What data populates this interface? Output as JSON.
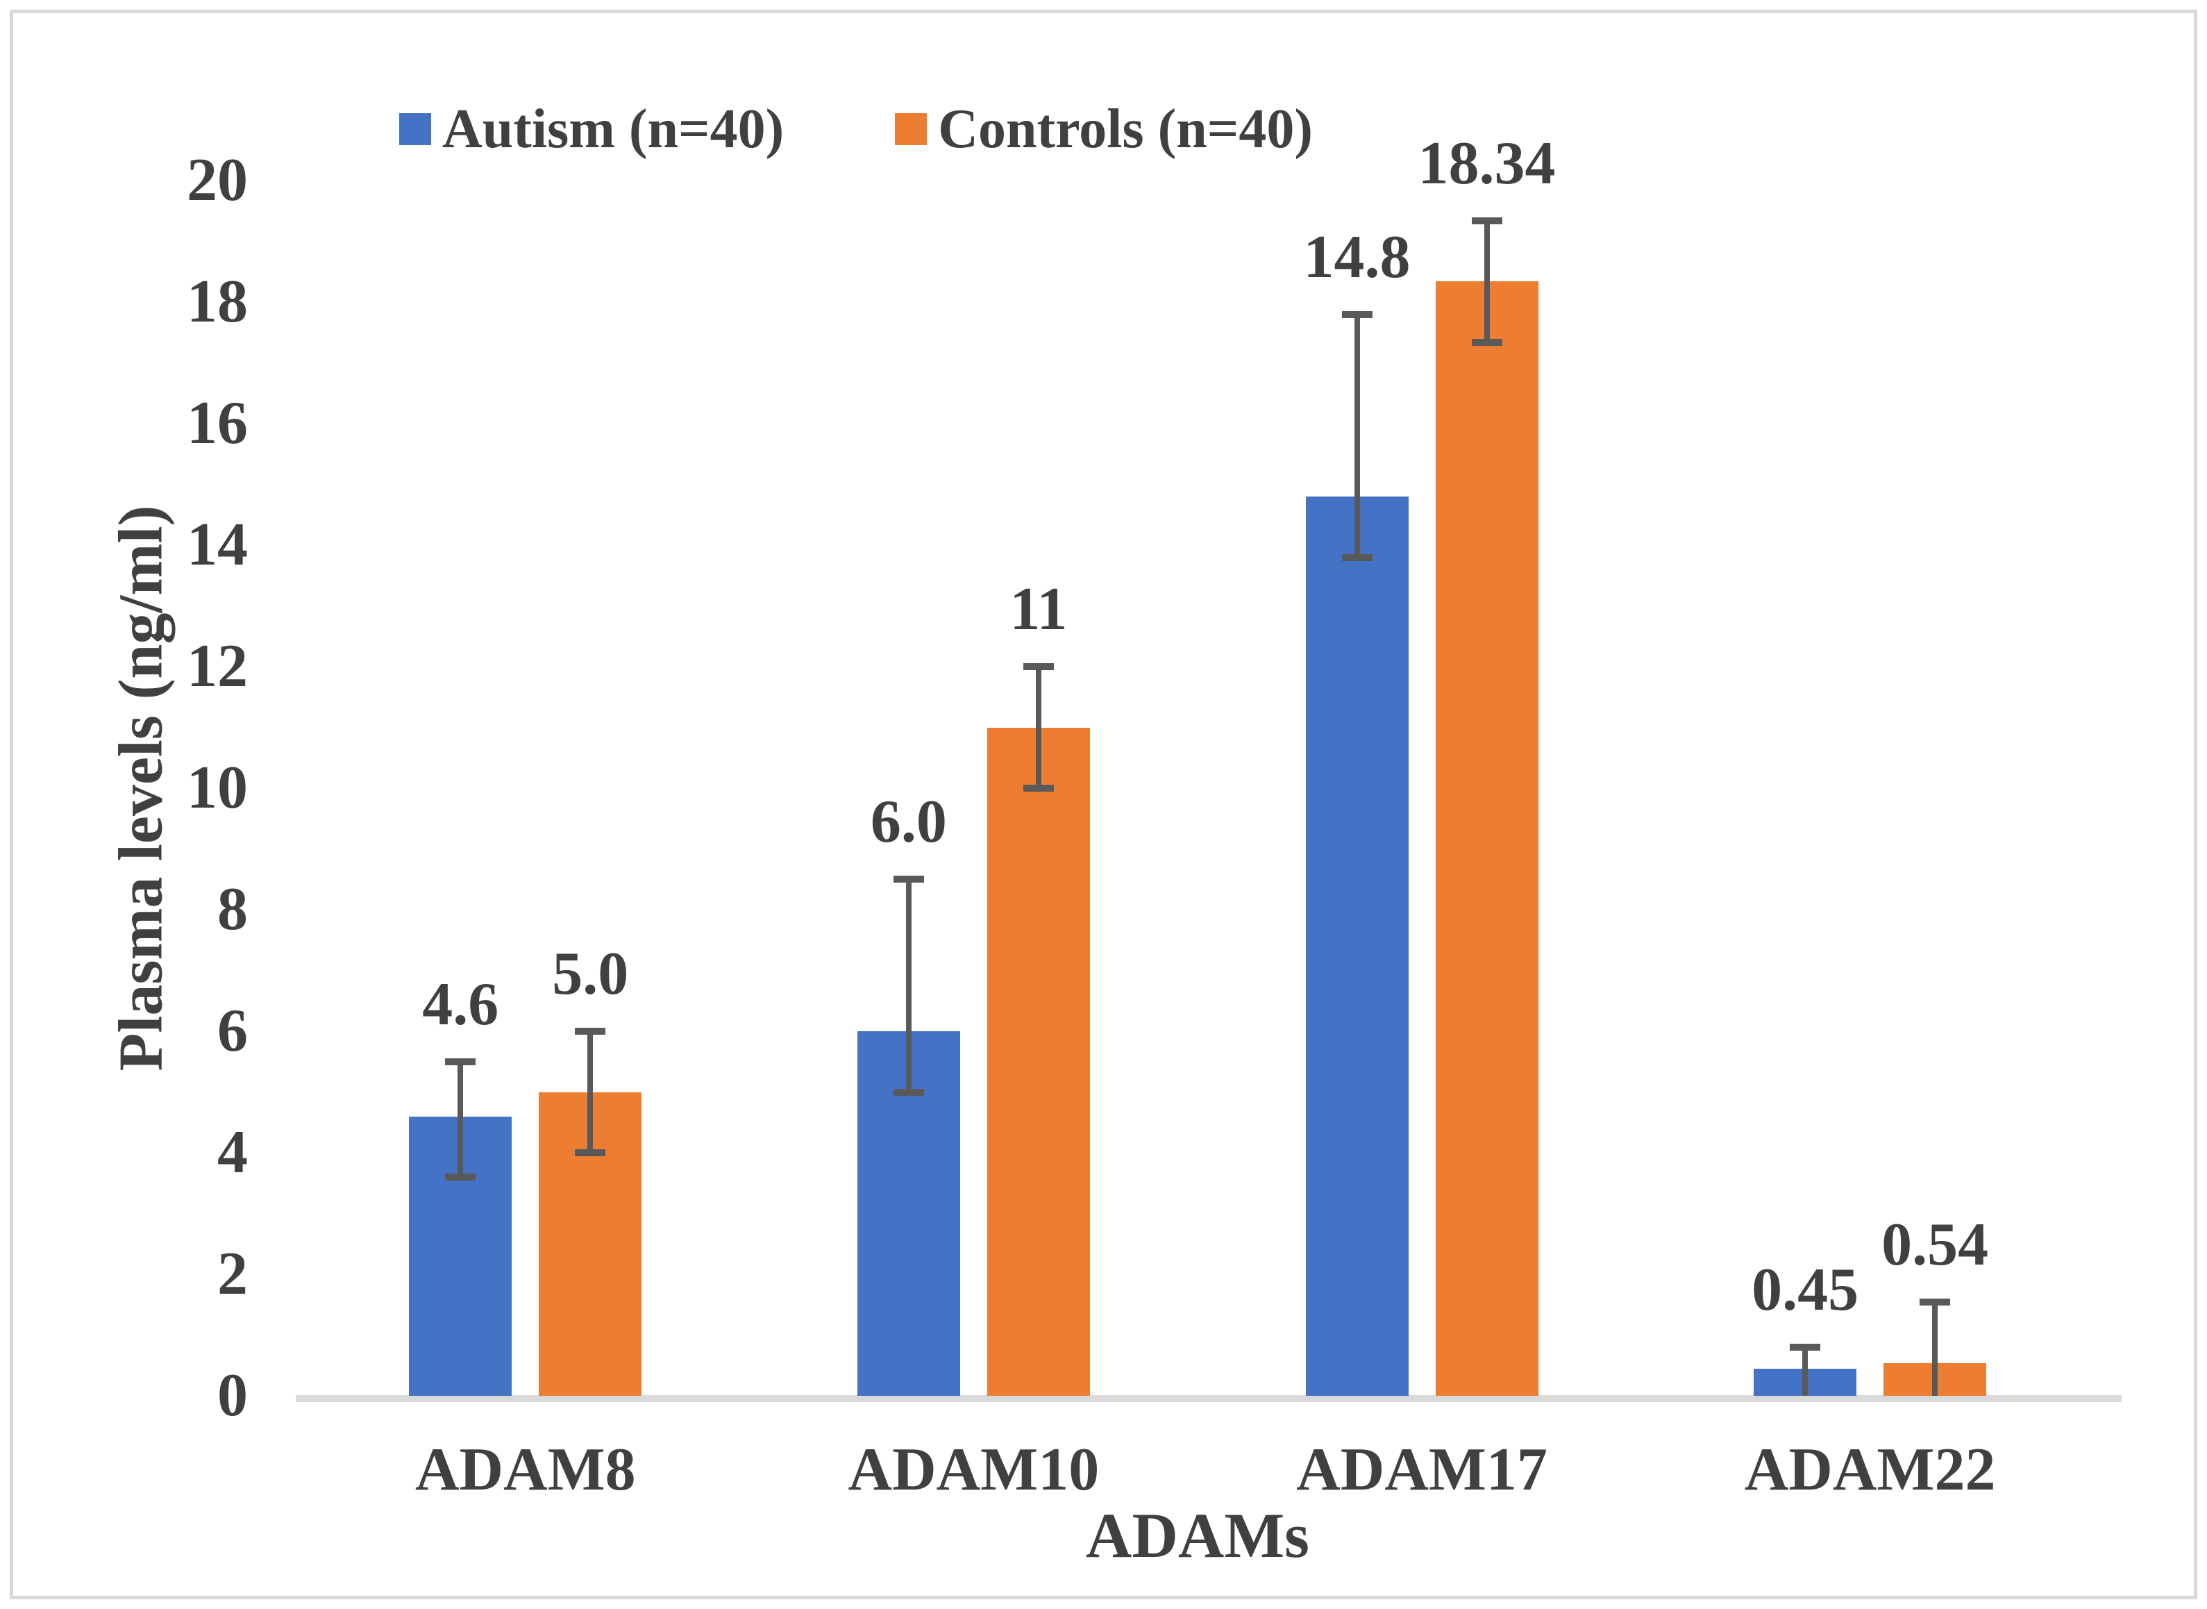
{
  "figure": {
    "y_axis_title": "Plasma levels (ng/ml)",
    "x_axis_title": "ADAMs"
  },
  "legend": [
    {
      "label": "Autism (n=40)",
      "color": "#4472C4"
    },
    {
      "label": "Controls (n=40)",
      "color": "#ED7D31"
    }
  ],
  "colors": {
    "autism_blue": "#4472C4",
    "controls_orange": "#ED7D31",
    "error_bar": "#595959",
    "axis_line": "#D9D9D9",
    "frame_border": "#D9D9D9",
    "text": "#404040"
  },
  "chart_data": {
    "type": "bar",
    "title": "",
    "xlabel": "ADAMs",
    "ylabel": "Plasma levels (ng/ml)",
    "categories": [
      "ADAM8",
      "ADAM10",
      "ADAM17",
      "ADAM22"
    ],
    "series": [
      {
        "name": "Autism (n=40)",
        "color": "#4472C4",
        "values": [
          4.6,
          6.0,
          14.8,
          0.45
        ],
        "labels": [
          "4.6",
          "6.0",
          "14.8",
          "0.45"
        ],
        "error_low": [
          3.6,
          5.0,
          13.8,
          0.0
        ],
        "error_high": [
          5.5,
          8.5,
          17.8,
          0.8
        ]
      },
      {
        "name": "Controls (n=40)",
        "color": "#ED7D31",
        "values": [
          5.0,
          11,
          18.34,
          0.54
        ],
        "labels": [
          "5.0",
          "11",
          "18.34",
          "0.54"
        ],
        "error_low": [
          4.0,
          10.0,
          17.34,
          0.0
        ],
        "error_high": [
          6.0,
          12.0,
          19.34,
          1.54
        ]
      }
    ],
    "ylim": [
      0,
      20
    ],
    "yticks": [
      0,
      2,
      4,
      6,
      8,
      10,
      12,
      14,
      16,
      18,
      20
    ],
    "grid": false,
    "legend_position": "top",
    "error_bars": true
  }
}
